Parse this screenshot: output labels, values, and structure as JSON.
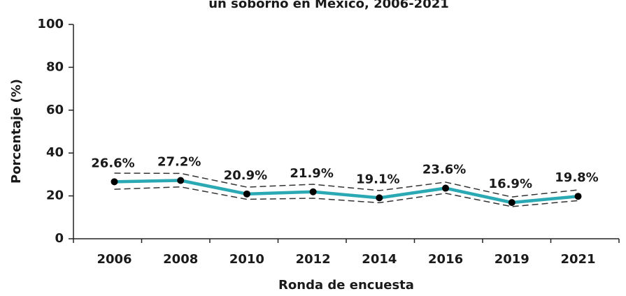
{
  "chart_data": {
    "type": "line",
    "title": "un soborno en México, 2006-2021",
    "x_label": "Ronda de encuesta",
    "y_label": "Porcentaje (%)",
    "categories": [
      "2006",
      "2008",
      "2010",
      "2012",
      "2014",
      "2016",
      "2019",
      "2021"
    ],
    "values": [
      26.6,
      27.2,
      20.9,
      21.9,
      19.1,
      23.6,
      16.9,
      19.8
    ],
    "value_labels": [
      "26.6%",
      "27.2%",
      "20.9%",
      "21.9%",
      "19.1%",
      "23.6%",
      "16.9%",
      "19.8%"
    ],
    "upper": [
      30.6,
      30.5,
      24.1,
      25.4,
      22.5,
      26.4,
      19.5,
      22.8
    ],
    "lower": [
      23.1,
      24.2,
      18.4,
      18.9,
      16.8,
      21.2,
      15.0,
      17.8
    ],
    "color": "#2aa9b4",
    "ci_color": "#333333",
    "ylim": [
      0,
      100
    ],
    "yticks": [
      0,
      20,
      40,
      60,
      80,
      100
    ]
  }
}
